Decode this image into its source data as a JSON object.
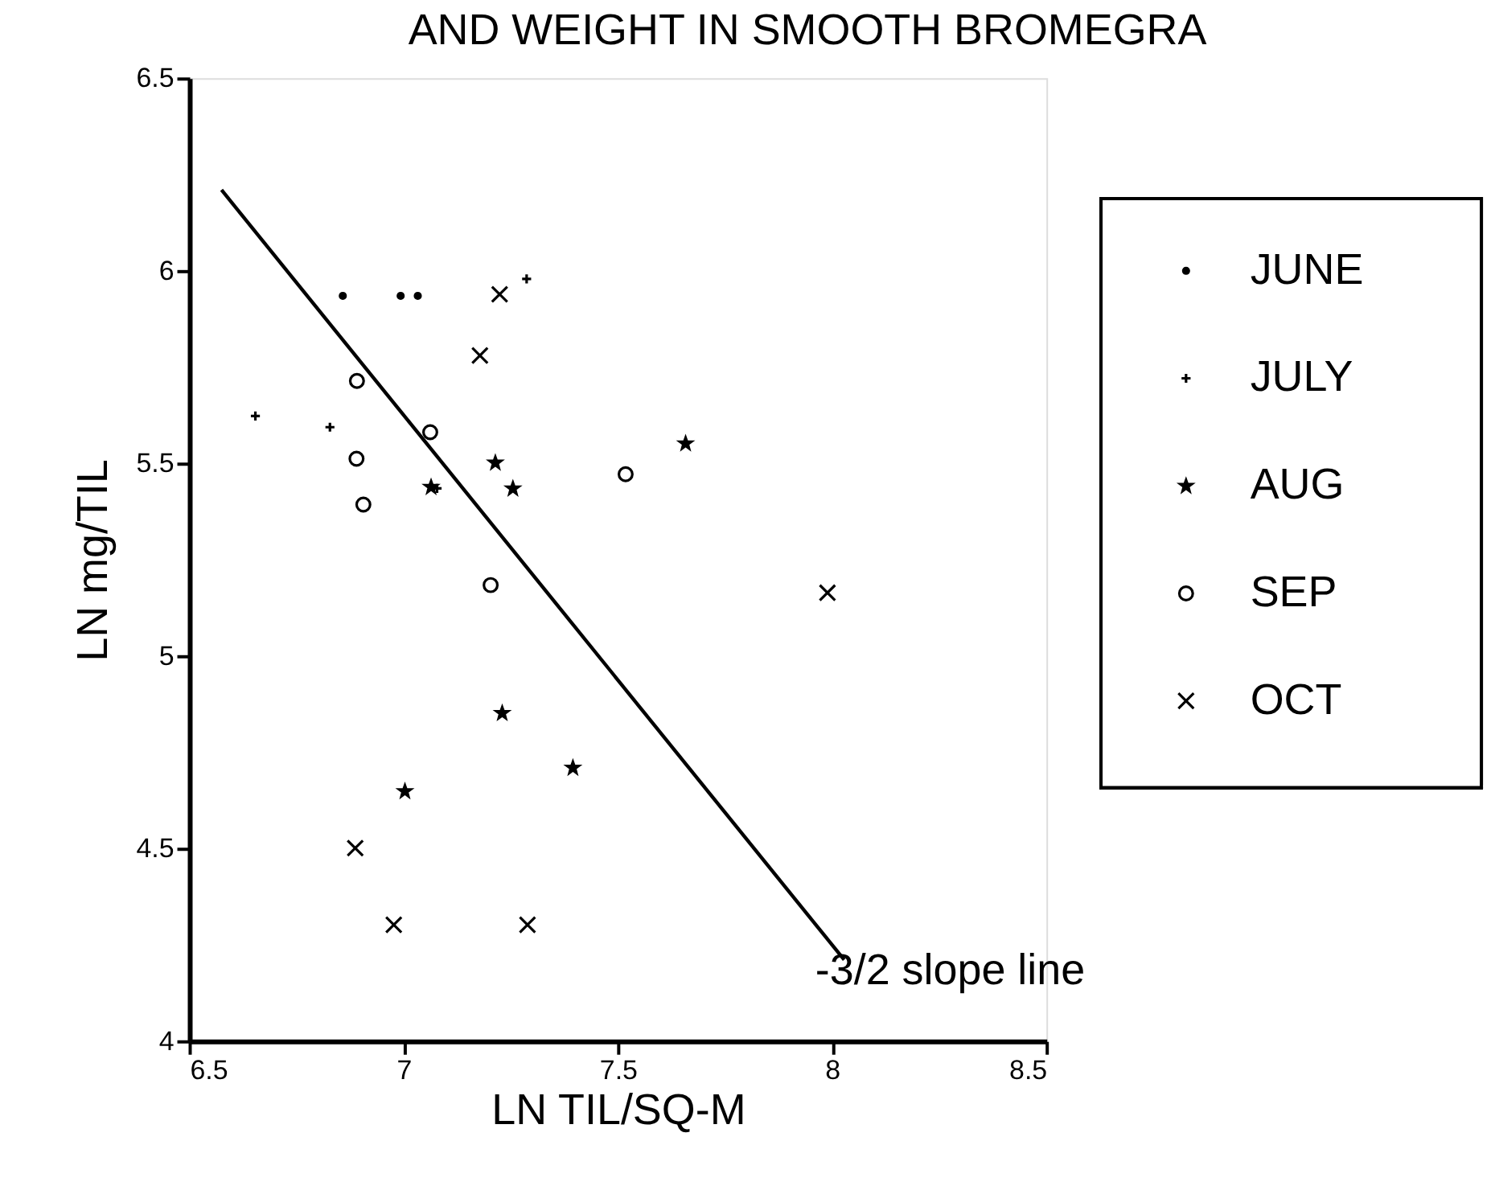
{
  "chart_data": {
    "type": "scatter",
    "title": "AND WEIGHT IN SMOOTH BROMEGRA",
    "xlabel": "LN TIL/SQ-M",
    "ylabel": "LN mg/TIL",
    "xlim": [
      6.5,
      8.5
    ],
    "ylim": [
      4,
      6.5
    ],
    "xticks": [
      6.5,
      {
        "value": 7,
        "label": "7"
      },
      7.5,
      {
        "value": 8,
        "label": "8"
      },
      8.5
    ],
    "yticks": [
      {
        "value": 4,
        "label": "4"
      },
      4.5,
      {
        "value": 5,
        "label": "5"
      },
      5.5,
      {
        "value": 6,
        "label": "6"
      },
      6.5
    ],
    "grid": false,
    "legend": "right",
    "series": [
      {
        "name": "JUNE",
        "color": "#000000",
        "marker": "point",
        "x": [
          6.858,
          6.993,
          7.033
        ],
        "values": [
          5.935,
          5.935,
          5.935
        ]
      },
      {
        "name": "JULY",
        "color": "#000000",
        "marker": "plus",
        "x": [
          6.654,
          6.828,
          7.078,
          7.287
        ],
        "values": [
          5.623,
          5.594,
          5.435,
          5.979
        ]
      },
      {
        "name": "AUG",
        "color": "#000000",
        "marker": "star",
        "x": [
          7.064,
          7.214,
          7.255,
          7.658,
          7.23,
          7.395,
          7.003
        ],
        "values": [
          5.439,
          5.502,
          5.435,
          5.552,
          4.852,
          4.71,
          4.649
        ]
      },
      {
        "name": "SEP",
        "color": "#000000",
        "marker": "circle",
        "x": [
          6.891,
          7.062,
          6.89,
          6.906,
          7.518,
          7.203
        ],
        "values": [
          5.714,
          5.581,
          5.512,
          5.393,
          5.472,
          5.184
        ]
      },
      {
        "name": "OCT",
        "color": "#000000",
        "marker": "cross",
        "x": [
          7.224,
          7.178,
          7.989,
          6.887,
          6.977,
          7.289
        ],
        "values": [
          5.939,
          5.78,
          5.164,
          4.501,
          4.302,
          4.302
        ]
      },
      {
        "type": "line",
        "color": "#000000",
        "x": [
          6.575,
          8.028
        ],
        "values": [
          6.21,
          4.211
        ]
      }
    ],
    "annotations": [
      {
        "text": "-3/2 slope line",
        "x": 8.028,
        "y": 4.211
      }
    ]
  }
}
